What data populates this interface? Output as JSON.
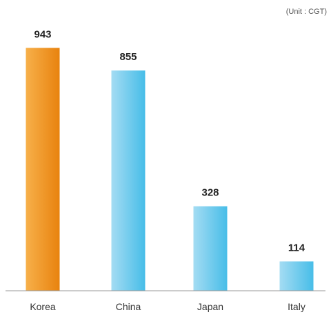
{
  "chart_data": {
    "type": "bar",
    "unit_note": "(Unit : CGT)",
    "categories": [
      "Korea",
      "China",
      "Japan",
      "Italy"
    ],
    "values": [
      943,
      855,
      328,
      114
    ],
    "ylim": [
      0,
      1000
    ],
    "grid": false,
    "legend": "none",
    "highlight_category": "Korea"
  },
  "colors": {
    "highlight_bar_light": "#f7b04a",
    "highlight_bar_dark": "#e8820e",
    "highlight_label": "#e87b18",
    "bar_light": "#a4dcf3",
    "bar_dark": "#47bde8",
    "baseline": "#999999"
  }
}
